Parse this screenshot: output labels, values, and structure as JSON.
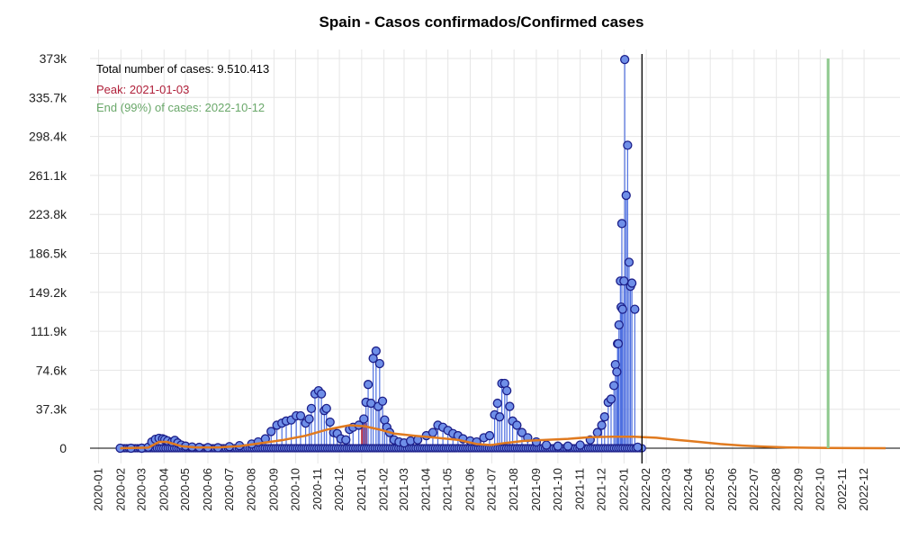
{
  "chart_data": {
    "type": "line",
    "title": "Spain - Casos confirmados/Confirmed cases",
    "xlabel": "",
    "ylabel": "",
    "y_ticks": [
      "0",
      "37.3k",
      "74.6k",
      "111.9k",
      "149.2k",
      "186.5k",
      "223.8k",
      "261.1k",
      "298.4k",
      "335.7k",
      "373k"
    ],
    "y_tick_values": [
      0,
      37300,
      74600,
      111900,
      149200,
      186500,
      223800,
      261100,
      298400,
      335700,
      373000
    ],
    "ylim": [
      0,
      373000
    ],
    "x_ticks": [
      "2020-01",
      "2020-02",
      "2020-03",
      "2020-04",
      "2020-05",
      "2020-06",
      "2020-07",
      "2020-08",
      "2020-09",
      "2020-10",
      "2020-11",
      "2020-12",
      "2021-01",
      "2021-02",
      "2021-03",
      "2021-04",
      "2021-05",
      "2021-06",
      "2021-07",
      "2021-08",
      "2021-09",
      "2021-10",
      "2021-11",
      "2021-12",
      "2022-01",
      "2022-02",
      "2022-03",
      "2022-04",
      "2022-05",
      "2022-06",
      "2022-07",
      "2022-08",
      "2022-09",
      "2022-10",
      "2022-11",
      "2022-12"
    ],
    "grid": true,
    "annotations": {
      "total": "Total number of cases: 9.510.413",
      "peak": "Peak: 2021-01-03",
      "end": "End (99%) of cases: 2022-10-12"
    },
    "colors": {
      "points_fill": "#6f8fe8",
      "points_stroke": "#1c1f8a",
      "stems": "#4f70e0",
      "fit_curve": "#e07a1f",
      "peak": "#b0203a",
      "end_line": "#8ec98e",
      "current_date_line": "#000000"
    },
    "current_date": "2022-01-26",
    "peak_date": "2021-01-03",
    "end_date": "2022-10-12",
    "fit_curve": [
      [
        "2020-01-31",
        0
      ],
      [
        "2020-03-10",
        500
      ],
      [
        "2020-03-25",
        6000
      ],
      [
        "2020-04-05",
        6000
      ],
      [
        "2020-04-25",
        2000
      ],
      [
        "2020-05-15",
        800
      ],
      [
        "2020-06-15",
        800
      ],
      [
        "2020-07-15",
        2000
      ],
      [
        "2020-08-15",
        5000
      ],
      [
        "2020-09-15",
        8000
      ],
      [
        "2020-10-15",
        12000
      ],
      [
        "2020-11-15",
        18000
      ],
      [
        "2020-12-15",
        22000
      ],
      [
        "2021-01-05",
        21000
      ],
      [
        "2021-01-25",
        18000
      ],
      [
        "2021-02-15",
        14000
      ],
      [
        "2021-03-15",
        12000
      ],
      [
        "2021-04-15",
        10000
      ],
      [
        "2021-05-15",
        8000
      ],
      [
        "2021-06-10",
        4000
      ],
      [
        "2021-06-30",
        3000
      ],
      [
        "2021-07-20",
        5000
      ],
      [
        "2021-08-15",
        7000
      ],
      [
        "2021-09-15",
        8000
      ],
      [
        "2021-10-15",
        9000
      ],
      [
        "2021-11-15",
        10500
      ],
      [
        "2021-12-15",
        11000
      ],
      [
        "2022-01-15",
        11000
      ],
      [
        "2022-02-15",
        10000
      ],
      [
        "2022-03-15",
        8000
      ],
      [
        "2022-04-15",
        6000
      ],
      [
        "2022-05-15",
        4000
      ],
      [
        "2022-06-15",
        2500
      ],
      [
        "2022-07-15",
        1500
      ],
      [
        "2022-08-15",
        800
      ],
      [
        "2022-09-15",
        400
      ],
      [
        "2022-10-15",
        200
      ],
      [
        "2022-11-15",
        100
      ],
      [
        "2022-12-31",
        0
      ]
    ],
    "series": [
      {
        "points": [
          [
            "2020-01-31",
            1
          ],
          [
            "2020-02-15",
            1
          ],
          [
            "2020-03-01",
            50
          ],
          [
            "2020-03-10",
            1000
          ],
          [
            "2020-03-15",
            6000
          ],
          [
            "2020-03-20",
            8500
          ],
          [
            "2020-03-25",
            9500
          ],
          [
            "2020-03-30",
            9000
          ],
          [
            "2020-04-02",
            8200
          ],
          [
            "2020-04-06",
            7000
          ],
          [
            "2020-04-12",
            6000
          ],
          [
            "2020-04-16",
            7500
          ],
          [
            "2020-04-20",
            5000
          ],
          [
            "2020-04-25",
            3000
          ],
          [
            "2020-05-01",
            2000
          ],
          [
            "2020-05-10",
            1200
          ],
          [
            "2020-05-20",
            800
          ],
          [
            "2020-06-01",
            600
          ],
          [
            "2020-06-15",
            500
          ],
          [
            "2020-07-01",
            1500
          ],
          [
            "2020-07-15",
            2500
          ],
          [
            "2020-08-01",
            4000
          ],
          [
            "2020-08-10",
            6000
          ],
          [
            "2020-08-20",
            9000
          ],
          [
            "2020-08-28",
            16000
          ],
          [
            "2020-09-05",
            22000
          ],
          [
            "2020-09-12",
            24000
          ],
          [
            "2020-09-18",
            26000
          ],
          [
            "2020-09-25",
            27000
          ],
          [
            "2020-10-02",
            31000
          ],
          [
            "2020-10-08",
            31000
          ],
          [
            "2020-10-15",
            24000
          ],
          [
            "2020-10-20",
            28000
          ],
          [
            "2020-10-23",
            38000
          ],
          [
            "2020-10-28",
            52000
          ],
          [
            "2020-11-02",
            55000
          ],
          [
            "2020-11-06",
            52000
          ],
          [
            "2020-11-10",
            36000
          ],
          [
            "2020-11-13",
            38000
          ],
          [
            "2020-11-18",
            25000
          ],
          [
            "2020-11-23",
            15000
          ],
          [
            "2020-11-28",
            14000
          ],
          [
            "2020-12-03",
            9000
          ],
          [
            "2020-12-10",
            8000
          ],
          [
            "2020-12-15",
            18000
          ],
          [
            "2020-12-20",
            20000
          ],
          [
            "2020-12-28",
            22000
          ],
          [
            "2021-01-04",
            28000
          ],
          [
            "2021-01-07",
            44000
          ],
          [
            "2021-01-10",
            61000
          ],
          [
            "2021-01-14",
            43000
          ],
          [
            "2021-01-17",
            86000
          ],
          [
            "2021-01-21",
            93000
          ],
          [
            "2021-01-24",
            40000
          ],
          [
            "2021-01-26",
            81000
          ],
          [
            "2021-01-30",
            45000
          ],
          [
            "2021-02-02",
            27000
          ],
          [
            "2021-02-05",
            20000
          ],
          [
            "2021-02-09",
            15000
          ],
          [
            "2021-02-15",
            8000
          ],
          [
            "2021-02-22",
            6000
          ],
          [
            "2021-03-01",
            5000
          ],
          [
            "2021-03-10",
            7000
          ],
          [
            "2021-03-20",
            8000
          ],
          [
            "2021-04-01",
            12000
          ],
          [
            "2021-04-10",
            15000
          ],
          [
            "2021-04-17",
            22000
          ],
          [
            "2021-04-24",
            20000
          ],
          [
            "2021-05-01",
            17000
          ],
          [
            "2021-05-08",
            14000
          ],
          [
            "2021-05-15",
            12000
          ],
          [
            "2021-05-22",
            9000
          ],
          [
            "2021-06-01",
            7000
          ],
          [
            "2021-06-10",
            6000
          ],
          [
            "2021-06-20",
            10000
          ],
          [
            "2021-06-28",
            12000
          ],
          [
            "2021-07-05",
            32000
          ],
          [
            "2021-07-09",
            43000
          ],
          [
            "2021-07-12",
            30000
          ],
          [
            "2021-07-15",
            62000
          ],
          [
            "2021-07-19",
            62000
          ],
          [
            "2021-07-22",
            55000
          ],
          [
            "2021-07-26",
            40000
          ],
          [
            "2021-07-30",
            26000
          ],
          [
            "2021-08-05",
            22000
          ],
          [
            "2021-08-12",
            15000
          ],
          [
            "2021-08-20",
            10000
          ],
          [
            "2021-09-01",
            6000
          ],
          [
            "2021-09-15",
            3000
          ],
          [
            "2021-10-01",
            2000
          ],
          [
            "2021-10-15",
            2000
          ],
          [
            "2021-11-01",
            3000
          ],
          [
            "2021-11-15",
            8000
          ],
          [
            "2021-11-25",
            15000
          ],
          [
            "2021-12-01",
            22000
          ],
          [
            "2021-12-05",
            30000
          ],
          [
            "2021-12-10",
            44000
          ],
          [
            "2021-12-14",
            47000
          ],
          [
            "2021-12-18",
            60000
          ],
          [
            "2021-12-20",
            80000
          ],
          [
            "2021-12-22",
            73000
          ],
          [
            "2021-12-23",
            100000
          ],
          [
            "2021-12-24",
            100000
          ],
          [
            "2021-12-25",
            118000
          ],
          [
            "2021-12-27",
            160000
          ],
          [
            "2021-12-28",
            135000
          ],
          [
            "2021-12-29",
            215000
          ],
          [
            "2021-12-30",
            133000
          ],
          [
            "2022-01-01",
            160000
          ],
          [
            "2022-01-02",
            372000
          ],
          [
            "2022-01-04",
            242000
          ],
          [
            "2022-01-06",
            290000
          ],
          [
            "2022-01-08",
            178000
          ],
          [
            "2022-01-10",
            155000
          ],
          [
            "2022-01-12",
            158000
          ],
          [
            "2022-01-16",
            133000
          ],
          [
            "2022-01-20",
            1000
          ]
        ]
      }
    ]
  }
}
